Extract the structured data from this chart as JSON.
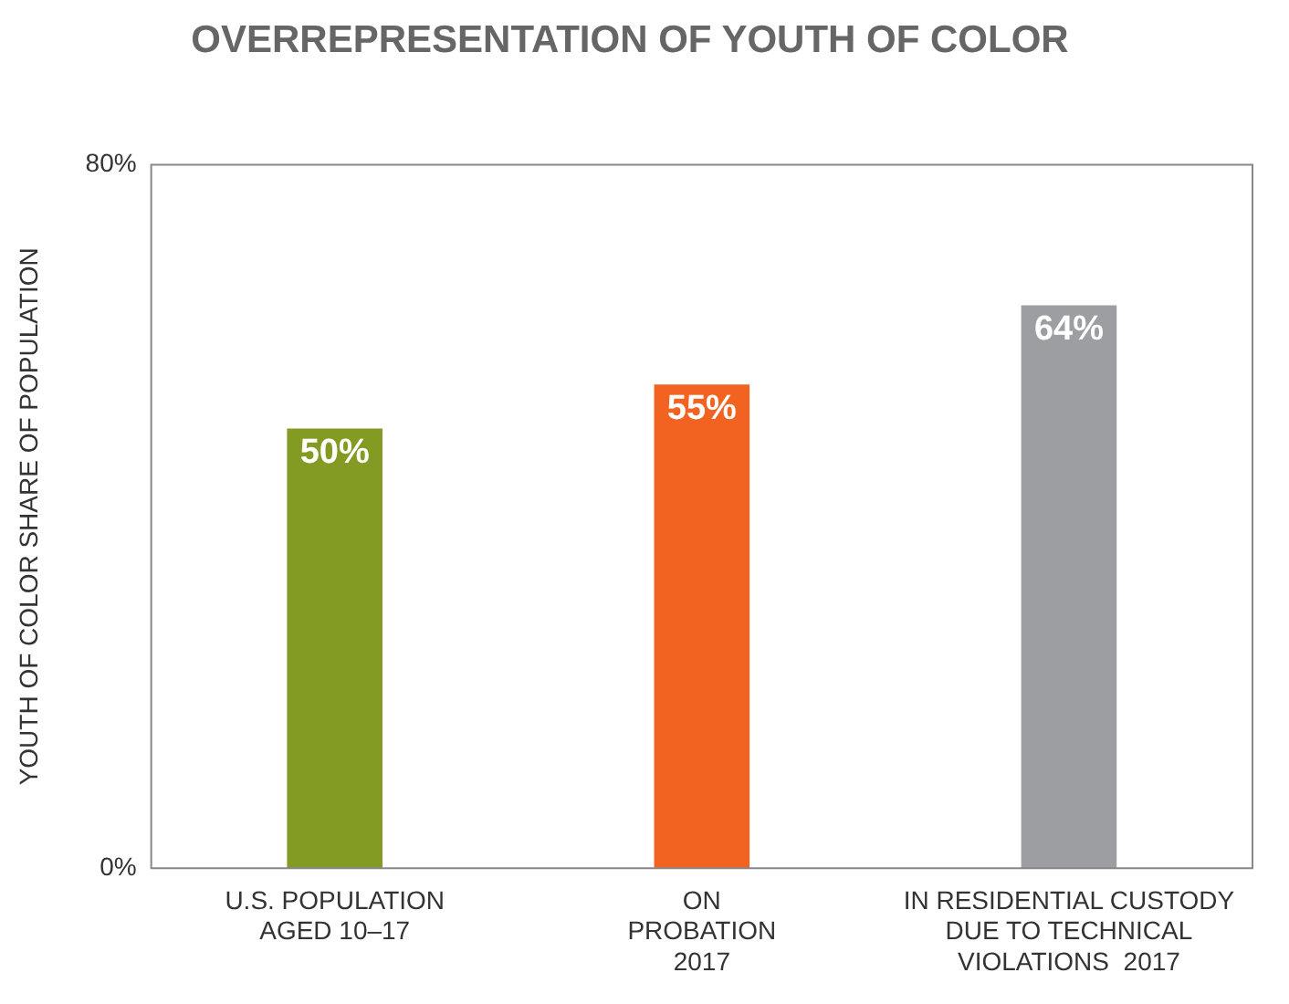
{
  "chart_data": {
    "type": "bar",
    "title": "OVERREPRESENTATION OF YOUTH OF COLOR",
    "ylabel": "YOUTH OF COLOR SHARE OF POPULATION",
    "categories": [
      "U.S. POPULATION\nAGED 10–17",
      "ON\nPROBATION\n2017",
      "IN RESIDENTIAL CUSTODY\nDUE TO TECHNICAL\nVIOLATIONS  2017"
    ],
    "values": [
      50,
      55,
      64
    ],
    "colors": [
      "#839b23",
      "#f26322",
      "#9d9ea1"
    ],
    "value_labels": [
      "50%",
      "55%",
      "64%"
    ],
    "ylim": [
      0,
      80
    ],
    "yticks": [
      {
        "value": 0,
        "label": "0%"
      },
      {
        "value": 80,
        "label": "80%"
      }
    ],
    "grid": false,
    "legend": false
  }
}
